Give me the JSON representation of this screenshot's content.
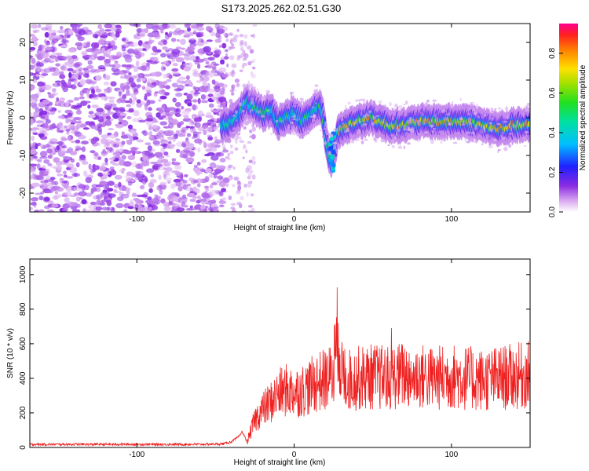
{
  "title": "S173.2025.262.02.51.G30",
  "chart_data": [
    {
      "type": "heatmap",
      "xlabel": "Height of straight line (km)",
      "ylabel": "Frequency (Hz)",
      "xlim": [
        -168,
        150
      ],
      "ylim": [
        -25,
        25
      ],
      "xticks": [
        -100,
        0,
        100
      ],
      "yticks": [
        -20,
        -10,
        0,
        10,
        20
      ],
      "ridge": {
        "description_points_x": [
          -45,
          -40,
          -35,
          -30,
          -25,
          -20,
          -15,
          -10,
          -5,
          0,
          5,
          10,
          15,
          18,
          20,
          22,
          24,
          26,
          28,
          30,
          35,
          40,
          50,
          60,
          70,
          80,
          90,
          100,
          110,
          120,
          130,
          140,
          150
        ],
        "description_points_y": [
          -2,
          -1,
          1,
          4,
          3,
          1,
          2,
          -1,
          0,
          1,
          -1,
          1,
          3,
          2,
          -5,
          -10,
          -11,
          -8,
          -4,
          -3,
          -2,
          -1,
          0,
          -2,
          -2,
          -1,
          -1,
          -1,
          -1,
          -2,
          -3,
          -2,
          -2
        ]
      },
      "colorbar": {
        "label": "Normalized spectral amplitude",
        "ticks": [
          0.0,
          0.2,
          0.4,
          0.6,
          0.8
        ],
        "range": [
          0.0,
          0.95
        ]
      }
    },
    {
      "type": "line",
      "xlabel": "Height of straight line (km)",
      "ylabel": "SNR (10 * v/v)",
      "xlim": [
        -168,
        150
      ],
      "ylim": [
        0,
        1090
      ],
      "xticks": [
        -100,
        0,
        100
      ],
      "yticks": [
        0,
        200,
        400,
        600,
        800,
        1000
      ],
      "series": [
        {
          "name": "SNR",
          "color": "#ee2020",
          "x": [
            -168,
            -140,
            -110,
            -80,
            -60,
            -45,
            -40,
            -35,
            -33,
            -30,
            -25,
            -20,
            -15,
            -10,
            -5,
            0,
            5,
            10,
            15,
            20,
            25,
            27,
            28,
            30,
            35,
            40,
            50,
            60,
            70,
            80,
            90,
            100,
            110,
            120,
            130,
            140,
            150
          ],
          "y": [
            15,
            15,
            15,
            15,
            15,
            18,
            30,
            60,
            90,
            30,
            160,
            220,
            260,
            310,
            330,
            320,
            330,
            350,
            380,
            390,
            420,
            600,
            700,
            420,
            390,
            400,
            410,
            400,
            420,
            410,
            400,
            410,
            400,
            390,
            400,
            410,
            420
          ]
        }
      ]
    }
  ]
}
